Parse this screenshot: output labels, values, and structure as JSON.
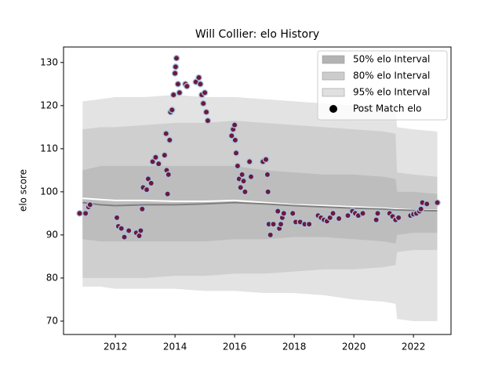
{
  "chart_data": {
    "type": "band",
    "title": "Will Collier: elo History",
    "ylabel": "elo score",
    "xlim": [
      2010.26,
      2023.26
    ],
    "ylim": [
      66.9,
      133.6
    ],
    "xticks": [
      2012,
      2014,
      2016,
      2018,
      2020,
      2022
    ],
    "yticks": [
      70,
      80,
      90,
      100,
      110,
      120,
      130
    ],
    "legend": "upper right",
    "band_x": [
      2010.9,
      2011.5,
      2012,
      2013,
      2014,
      2015,
      2016,
      2017,
      2018,
      2019,
      2020,
      2021,
      2021.4,
      2021.45,
      2022,
      2022.8
    ],
    "bands": [
      {
        "name": "95% elo Interval",
        "color": "#e3e3e3",
        "legend_color": "#e0e0e0",
        "upper": [
          121,
          121.5,
          122,
          122,
          122.5,
          122,
          122,
          121.5,
          121,
          120.5,
          120,
          119.5,
          119,
          115,
          114.5,
          114
        ],
        "lower": [
          78,
          78,
          77.5,
          77.5,
          77.5,
          77,
          77,
          76.5,
          76.5,
          76,
          75,
          74.5,
          74,
          70.5,
          70,
          70
        ]
      },
      {
        "name": "80% elo Interval",
        "color": "#cfcfcf",
        "legend_color": "#cccccc",
        "upper": [
          114.5,
          115,
          115,
          115.5,
          116,
          116,
          116.5,
          116,
          115.5,
          115,
          114.5,
          114,
          113.5,
          104.5,
          104,
          103.5
        ],
        "lower": [
          80,
          80,
          80,
          80,
          80.5,
          80.5,
          81,
          81,
          81.5,
          82,
          82,
          82.5,
          83,
          86,
          86.5,
          86.5
        ]
      },
      {
        "name": "50% elo Interval",
        "color": "#bdbdbd",
        "legend_color": "#b3b3b3",
        "upper": [
          105,
          106,
          106,
          106,
          106,
          106,
          106,
          105,
          104.5,
          104,
          104,
          103.5,
          103,
          100,
          100,
          99.5
        ],
        "lower": [
          89,
          88.5,
          88.5,
          88.5,
          88.5,
          88.5,
          89,
          89,
          89.5,
          89.5,
          89,
          88.5,
          88,
          90,
          90.5,
          90.5
        ]
      }
    ],
    "lines": [
      {
        "color": "#ffffff",
        "values": [
          98.5,
          98.2,
          98,
          98,
          97.8,
          97.8,
          98,
          97.5,
          97,
          96.8,
          96.5,
          96.2,
          96,
          96,
          95.8,
          95.7
        ]
      },
      {
        "color": "#808080",
        "values": [
          97.5,
          97,
          96.8,
          97,
          97,
          97.2,
          97.5,
          97.2,
          96.8,
          96.5,
          96.2,
          96,
          95.8,
          95.8,
          95.7,
          95.6
        ]
      }
    ],
    "points": {
      "name": "Post Match elo",
      "color": "#6b1a3a",
      "edgecolor": "#a9c4e3",
      "legend_color": "#000000",
      "x": [
        2010.8,
        2011.0,
        2011.1,
        2011.15,
        2012.05,
        2012.1,
        2012.2,
        2012.3,
        2012.45,
        2012.7,
        2012.8,
        2012.85,
        2012.9,
        2012.93,
        2013.05,
        2013.1,
        2013.2,
        2013.25,
        2013.35,
        2013.45,
        2013.65,
        2013.7,
        2013.72,
        2013.75,
        2013.78,
        2013.82,
        2013.85,
        2013.9,
        2013.95,
        2014.0,
        2014.02,
        2014.05,
        2014.1,
        2014.15,
        2014.35,
        2014.4,
        2014.7,
        2014.8,
        2014.85,
        2014.9,
        2014.95,
        2015.0,
        2015.05,
        2015.1,
        2015.9,
        2015.95,
        2016.0,
        2016.02,
        2016.05,
        2016.1,
        2016.15,
        2016.2,
        2016.25,
        2016.3,
        2016.35,
        2016.5,
        2016.55,
        2016.95,
        2017.05,
        2017.1,
        2017.12,
        2017.15,
        2017.2,
        2017.3,
        2017.45,
        2017.5,
        2017.55,
        2017.6,
        2017.65,
        2017.95,
        2018.05,
        2018.2,
        2018.35,
        2018.5,
        2018.8,
        2018.9,
        2019.0,
        2019.1,
        2019.2,
        2019.3,
        2019.5,
        2019.8,
        2019.95,
        2020.05,
        2020.15,
        2020.3,
        2020.75,
        2020.8,
        2021.2,
        2021.3,
        2021.4,
        2021.5,
        2021.9,
        2022.0,
        2022.1,
        2022.2,
        2022.25,
        2022.3,
        2022.45,
        2022.8
      ],
      "values": [
        95,
        95,
        96.5,
        97,
        94,
        92,
        91.5,
        89.5,
        91,
        90.5,
        89.8,
        91,
        96,
        101,
        100.5,
        103,
        102,
        107,
        108,
        106.5,
        108.5,
        113.5,
        105,
        99.5,
        104,
        112,
        118.5,
        119,
        122.5,
        127.5,
        129,
        131,
        125,
        123,
        125,
        124.5,
        125.5,
        126.5,
        125,
        122.5,
        120.5,
        123,
        118.5,
        116.5,
        113,
        114.5,
        115.5,
        112,
        109,
        106,
        103,
        101,
        104,
        102.5,
        100,
        107,
        103.5,
        107,
        107.5,
        104,
        100,
        92.5,
        90,
        92.5,
        95.5,
        91.5,
        92.5,
        94,
        95,
        95,
        93,
        93,
        92.5,
        92.5,
        94.5,
        94,
        93.5,
        93.2,
        94,
        95,
        93.8,
        94.5,
        95.5,
        95,
        94.5,
        95,
        93.5,
        95,
        95,
        94.3,
        93.5,
        94,
        94.5,
        94.8,
        95,
        95.5,
        96,
        97.5,
        97.2,
        97.5
      ]
    }
  }
}
